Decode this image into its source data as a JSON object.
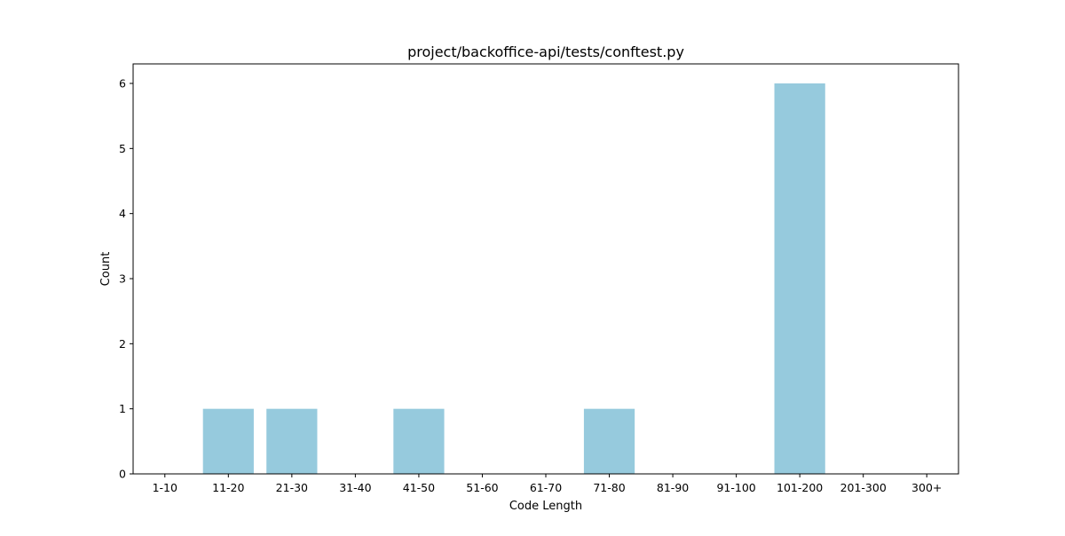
{
  "chart_data": {
    "type": "bar",
    "title": "project/backoffice-api/tests/conftest.py",
    "xlabel": "Code Length",
    "ylabel": "Count",
    "categories": [
      "1-10",
      "11-20",
      "21-30",
      "31-40",
      "41-50",
      "51-60",
      "61-70",
      "71-80",
      "81-90",
      "91-100",
      "101-200",
      "201-300",
      "300+"
    ],
    "values": [
      0,
      1,
      1,
      0,
      1,
      0,
      0,
      1,
      0,
      0,
      6,
      0,
      0
    ],
    "ylim": [
      0,
      6.3
    ],
    "yticks": [
      "0",
      "1",
      "2",
      "3",
      "4",
      "5",
      "6"
    ],
    "bar_color": "#96cadd",
    "grid": false,
    "legend": "none"
  }
}
